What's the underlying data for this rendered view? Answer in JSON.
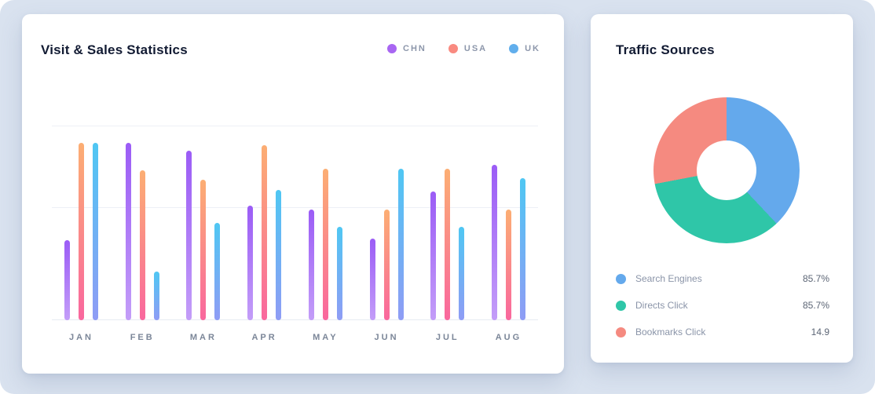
{
  "left_card": {
    "title": "Visit & Sales Statistics"
  },
  "right_card": {
    "title": "Traffic Sources"
  },
  "chart_data": [
    {
      "type": "bar",
      "title": "Visit & Sales Statistics",
      "categories": [
        "JAN",
        "FEB",
        "MAR",
        "APR",
        "MAY",
        "JUN",
        "JUL",
        "AUG"
      ],
      "series": [
        {
          "name": "CHN",
          "color": "#a866f2",
          "gradient": [
            "#9b5cf6",
            "#c39df8"
          ],
          "values": [
            41,
            91,
            87,
            59,
            57,
            42,
            66,
            80
          ]
        },
        {
          "name": "USA",
          "color": "#f98a80",
          "gradient": [
            "#fcae73",
            "#f9679e"
          ],
          "values": [
            91,
            77,
            72,
            90,
            78,
            57,
            78,
            57
          ]
        },
        {
          "name": "UK",
          "color": "#61aeec",
          "gradient": [
            "#4fc7f3",
            "#8f9cf5"
          ],
          "values": [
            91,
            25,
            50,
            67,
            48,
            78,
            48,
            73
          ]
        }
      ],
      "ylim": [
        0,
        100
      ],
      "grid": "horizontal",
      "legend_position": "top-right"
    },
    {
      "type": "pie",
      "donut": true,
      "title": "Traffic Sources",
      "segments": [
        {
          "label": "Search Engines",
          "display_value": "85.7%",
          "arc_percent": 38,
          "color": "#64a9ec"
        },
        {
          "label": "Directs Click",
          "display_value": "85.7%",
          "arc_percent": 34,
          "color": "#2fc6a8"
        },
        {
          "label": "Bookmarks Click",
          "display_value": "14.9",
          "arc_percent": 28,
          "color": "#f58a80"
        }
      ],
      "legend_position": "bottom"
    }
  ]
}
